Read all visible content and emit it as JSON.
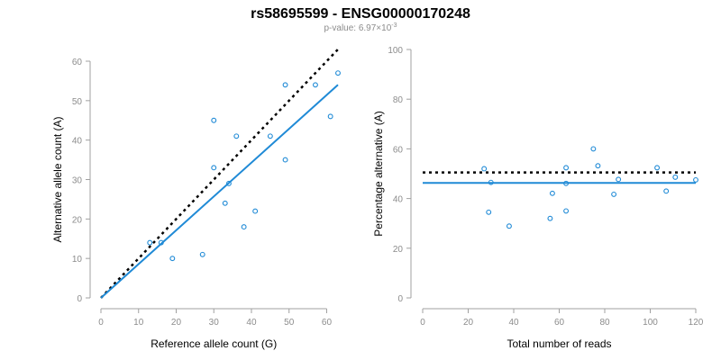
{
  "header": {
    "title": "rs58695599 - ENSG00000170248",
    "pvalue_prefix": "p-value: 6.97×10",
    "pvalue_exponent": "-3"
  },
  "colors": {
    "points": "#1f8ad6",
    "fit_line": "#1f8ad6",
    "reference_line": "#000000"
  },
  "chart_data": [
    {
      "type": "scatter",
      "xlabel": "Reference allele count (G)",
      "ylabel": "Alternative allele count (A)",
      "xlim": [
        0,
        63
      ],
      "ylim": [
        0,
        60
      ],
      "xticks": [
        0,
        10,
        20,
        30,
        40,
        50,
        60
      ],
      "yticks": [
        0,
        10,
        20,
        30,
        40,
        50,
        60
      ],
      "points": [
        {
          "x": 13,
          "y": 14
        },
        {
          "x": 16,
          "y": 14
        },
        {
          "x": 19,
          "y": 10
        },
        {
          "x": 27,
          "y": 11
        },
        {
          "x": 30,
          "y": 45
        },
        {
          "x": 30,
          "y": 33
        },
        {
          "x": 33,
          "y": 24
        },
        {
          "x": 34,
          "y": 29
        },
        {
          "x": 36,
          "y": 41
        },
        {
          "x": 38,
          "y": 18
        },
        {
          "x": 41,
          "y": 22
        },
        {
          "x": 45,
          "y": 41
        },
        {
          "x": 49,
          "y": 54
        },
        {
          "x": 49,
          "y": 35
        },
        {
          "x": 57,
          "y": 54
        },
        {
          "x": 61,
          "y": 46
        },
        {
          "x": 63,
          "y": 57
        }
      ],
      "reference_line": {
        "x": [
          0,
          63
        ],
        "y": [
          0,
          63
        ]
      },
      "fit_line": {
        "x": [
          0,
          63
        ],
        "y": [
          0,
          54
        ]
      },
      "grid": false
    },
    {
      "type": "scatter",
      "xlabel": "Total number of reads",
      "ylabel": "Percentage alternative (A)",
      "xlim": [
        0,
        120
      ],
      "ylim": [
        0,
        100
      ],
      "xticks": [
        0,
        20,
        40,
        60,
        80,
        100,
        120
      ],
      "yticks": [
        0,
        20,
        40,
        60,
        80,
        100
      ],
      "points": [
        {
          "x": 27,
          "y": 52
        },
        {
          "x": 29,
          "y": 34.5
        },
        {
          "x": 30,
          "y": 46.5
        },
        {
          "x": 38,
          "y": 28.9
        },
        {
          "x": 56,
          "y": 32
        },
        {
          "x": 57,
          "y": 42.1
        },
        {
          "x": 63,
          "y": 35
        },
        {
          "x": 63,
          "y": 46.1
        },
        {
          "x": 63,
          "y": 52.4
        },
        {
          "x": 75,
          "y": 60
        },
        {
          "x": 77,
          "y": 53.2
        },
        {
          "x": 84,
          "y": 41.7
        },
        {
          "x": 86,
          "y": 47.7
        },
        {
          "x": 103,
          "y": 52.4
        },
        {
          "x": 107,
          "y": 43
        },
        {
          "x": 111,
          "y": 48.6
        },
        {
          "x": 120,
          "y": 47.5
        }
      ],
      "reference_line": {
        "x": [
          0,
          120
        ],
        "y": [
          50.5,
          50.5
        ]
      },
      "fit_line": {
        "x": [
          0,
          120
        ],
        "y": [
          46.3,
          46.3
        ]
      },
      "grid": false
    }
  ]
}
